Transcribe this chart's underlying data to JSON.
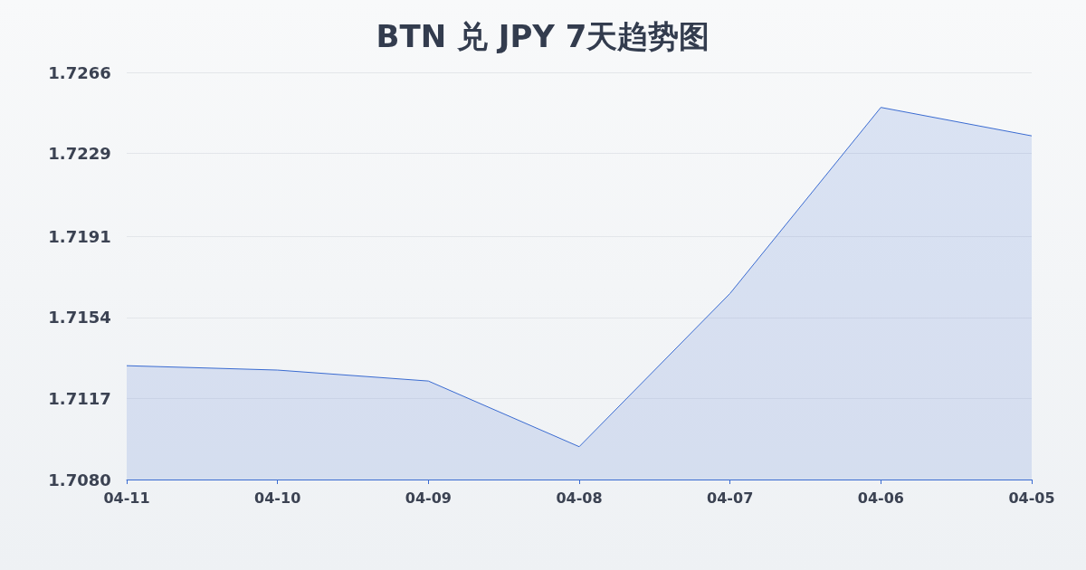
{
  "chart_data": {
    "type": "area",
    "title": "BTN 兑 JPY 7天趋势图",
    "categories": [
      "04-11",
      "04-10",
      "04-09",
      "04-08",
      "04-07",
      "04-06",
      "04-05"
    ],
    "series": [
      {
        "color": "#3a6bd1",
        "values": [
          1.7132,
          1.713,
          1.7125,
          1.7095,
          1.7165,
          1.725,
          1.7237
        ]
      }
    ],
    "ylim": [
      1.708,
      1.7266
    ],
    "yticks": [
      {
        "value": 1.708,
        "label": "1.7080"
      },
      1.7117,
      1.7154,
      1.7191,
      1.7229,
      1.7266
    ],
    "grid": "y",
    "marker": "none",
    "line_style": "solid"
  }
}
